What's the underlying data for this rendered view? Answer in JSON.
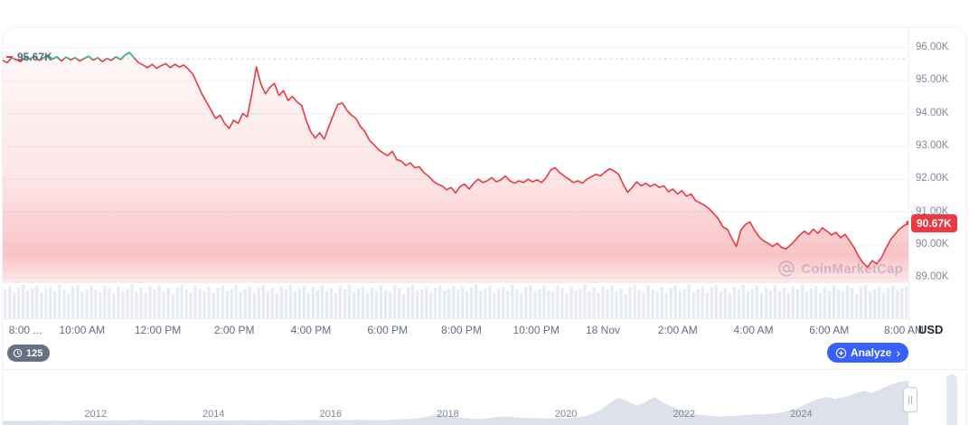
{
  "colors": {
    "red": "#ea3943",
    "green": "#16c784",
    "blue": "#3861fb",
    "slate": "#5a6779"
  },
  "watermark": {
    "text": "CoinMarketCap"
  },
  "toolbar": {
    "history_count": "125",
    "analyze_label": "Analyze",
    "analyze_chevron": "›"
  },
  "chart_data": [
    {
      "id": "main-price-chart",
      "type": "area",
      "title": "",
      "unit": "USD",
      "open_price": 95.67,
      "open_price_label": "95.67K",
      "current_price": 90.67,
      "current_price_label": "90.67K",
      "ylim": [
        88.6,
        96.6
      ],
      "grid": "horizontal",
      "legend": "none",
      "y_gridlines": [
        96,
        95,
        94,
        93,
        92,
        91,
        90,
        89
      ],
      "y_tick_labels": [
        "96.00K",
        "95.00K",
        "94.00K",
        "93.00K",
        "92.00K",
        "91.00K",
        "90.00K",
        "89.00K"
      ],
      "x_tick_labels": [
        {
          "label": "8:00 ...",
          "x": 0.025
        },
        {
          "label": "10:00 AM",
          "x": 0.0876
        },
        {
          "label": "12:00 PM",
          "x": 0.1712
        },
        {
          "label": "2:00 PM",
          "x": 0.2557
        },
        {
          "label": "4:00 PM",
          "x": 0.3403
        },
        {
          "label": "6:00 PM",
          "x": 0.4249
        },
        {
          "label": "8:00 PM",
          "x": 0.5065
        },
        {
          "label": "10:00 PM",
          "x": 0.589
        },
        {
          "label": "18 Nov",
          "x": 0.6627
        },
        {
          "label": "2:00 AM",
          "x": 0.7453
        },
        {
          "label": "4:00 AM",
          "x": 0.8289
        },
        {
          "label": "6:00 AM",
          "x": 0.9124
        },
        {
          "label": "8:00 AM",
          "x": 0.995
        }
      ],
      "line_color": "#ea3943",
      "above_open_color": "#16c784",
      "price_values": [
        95.62,
        95.55,
        95.7,
        95.64,
        95.58,
        95.72,
        95.66,
        95.75,
        95.62,
        95.7,
        95.78,
        95.66,
        95.73,
        95.6,
        95.72,
        95.64,
        95.7,
        95.6,
        95.68,
        95.74,
        95.63,
        95.7,
        95.58,
        95.68,
        95.62,
        95.73,
        95.65,
        95.78,
        95.86,
        95.7,
        95.55,
        95.48,
        95.4,
        95.5,
        95.38,
        95.46,
        95.52,
        95.4,
        95.5,
        95.42,
        95.48,
        95.35,
        95.2,
        94.9,
        94.6,
        94.35,
        94.1,
        93.85,
        93.95,
        93.7,
        93.55,
        93.8,
        93.7,
        94.0,
        93.9,
        94.6,
        95.42,
        94.9,
        94.6,
        94.8,
        94.92,
        94.55,
        94.7,
        94.4,
        94.52,
        94.35,
        94.25,
        93.8,
        93.45,
        93.25,
        93.42,
        93.22,
        93.6,
        93.95,
        94.28,
        94.32,
        94.1,
        93.95,
        93.85,
        93.6,
        93.45,
        93.18,
        93.05,
        92.9,
        92.8,
        92.72,
        92.85,
        92.6,
        92.55,
        92.42,
        92.5,
        92.35,
        92.38,
        92.2,
        92.1,
        91.95,
        91.85,
        91.8,
        91.68,
        91.75,
        91.58,
        91.78,
        91.85,
        91.7,
        91.88,
        92.0,
        91.9,
        91.95,
        92.05,
        91.92,
        91.98,
        92.1,
        91.95,
        91.88,
        91.95,
        91.9,
        92.0,
        91.92,
        91.98,
        91.9,
        92.05,
        92.28,
        92.35,
        92.2,
        92.1,
        92.0,
        91.9,
        91.95,
        91.88,
        92.0,
        92.08,
        92.15,
        92.1,
        92.22,
        92.32,
        92.25,
        92.15,
        91.85,
        91.6,
        91.75,
        91.92,
        91.8,
        91.88,
        91.78,
        91.85,
        91.75,
        91.8,
        91.62,
        91.7,
        91.55,
        91.65,
        91.48,
        91.55,
        91.35,
        91.28,
        91.2,
        91.1,
        90.95,
        90.8,
        90.55,
        90.48,
        90.2,
        89.95,
        90.45,
        90.62,
        90.7,
        90.45,
        90.25,
        90.12,
        90.05,
        89.95,
        90.05,
        89.92,
        89.88,
        90.0,
        90.15,
        90.3,
        90.42,
        90.32,
        90.48,
        90.35,
        90.52,
        90.42,
        90.3,
        90.38,
        90.22,
        90.32,
        90.12,
        89.92,
        89.65,
        89.45,
        89.32,
        89.52,
        89.42,
        89.6,
        89.88,
        90.15,
        90.32,
        90.48,
        90.58,
        90.67
      ],
      "volume_relative": [
        0.82,
        0.91,
        0.76,
        0.88,
        0.95,
        0.79,
        0.86,
        0.92,
        0.74,
        0.85,
        0.9,
        0.78,
        0.96,
        0.83,
        0.71,
        0.89,
        0.94,
        0.77,
        0.84,
        0.92,
        0.8,
        0.75,
        0.93,
        0.87,
        0.72,
        0.9,
        0.79,
        0.85,
        0.97,
        0.76,
        0.88,
        0.73,
        0.91,
        0.82,
        0.94,
        0.78,
        0.86,
        0.7,
        0.89,
        0.95,
        0.81,
        0.74,
        0.92,
        0.84,
        0.77,
        0.9,
        0.72,
        0.87,
        0.93,
        0.79,
        0.85,
        0.96,
        0.75,
        0.83,
        0.91,
        0.73,
        0.88,
        0.94,
        0.78,
        0.86,
        0.71,
        0.9,
        0.82,
        0.95,
        0.76,
        0.84,
        0.92,
        0.74,
        0.89,
        0.8,
        0.93,
        0.77,
        0.87,
        0.72,
        0.91,
        0.83,
        0.96,
        0.75,
        0.85,
        0.9,
        0.73,
        0.88,
        0.79,
        0.94,
        0.81,
        0.76,
        0.92,
        0.86,
        0.7,
        0.89,
        0.95,
        0.78,
        0.84,
        0.91,
        0.74,
        0.87,
        0.93,
        0.8,
        0.86,
        0.9
      ]
    },
    {
      "id": "history-navigator",
      "type": "area",
      "title": "",
      "fill_color": "#dde1ea",
      "x_tick_labels": [
        {
          "label": "2012",
          "x": 0.1025
        },
        {
          "label": "2014",
          "x": 0.2328
        },
        {
          "label": "2016",
          "x": 0.3622
        },
        {
          "label": "2018",
          "x": 0.4915
        },
        {
          "label": "2020",
          "x": 0.6219
        },
        {
          "label": "2022",
          "x": 0.7522
        },
        {
          "label": "2024",
          "x": 0.8816
        }
      ],
      "values": [
        0.01,
        0.01,
        0.01,
        0.01,
        0.02,
        0.01,
        0.02,
        0.01,
        0.02,
        0.02,
        0.02,
        0.02,
        0.03,
        0.02,
        0.03,
        0.04,
        0.03,
        0.02,
        0.02,
        0.03,
        0.02,
        0.02,
        0.03,
        0.02,
        0.03,
        0.02,
        0.03,
        0.03,
        0.02,
        0.03,
        0.03,
        0.02,
        0.03,
        0.03,
        0.04,
        0.03,
        0.03,
        0.04,
        0.03,
        0.04,
        0.04,
        0.03,
        0.03,
        0.04,
        0.05,
        0.06,
        0.08,
        0.12,
        0.18,
        0.14,
        0.1,
        0.08,
        0.06,
        0.06,
        0.09,
        0.12,
        0.11,
        0.09,
        0.08,
        0.08,
        0.07,
        0.08,
        0.07,
        0.09,
        0.12,
        0.18,
        0.28,
        0.45,
        0.58,
        0.5,
        0.38,
        0.48,
        0.6,
        0.45,
        0.35,
        0.28,
        0.2,
        0.16,
        0.14,
        0.12,
        0.13,
        0.14,
        0.16,
        0.18,
        0.17,
        0.19,
        0.22,
        0.28,
        0.35,
        0.45,
        0.55,
        0.6,
        0.55,
        0.6,
        0.68,
        0.75,
        0.7,
        0.8,
        0.9,
        0.97,
        1.0
      ]
    }
  ]
}
